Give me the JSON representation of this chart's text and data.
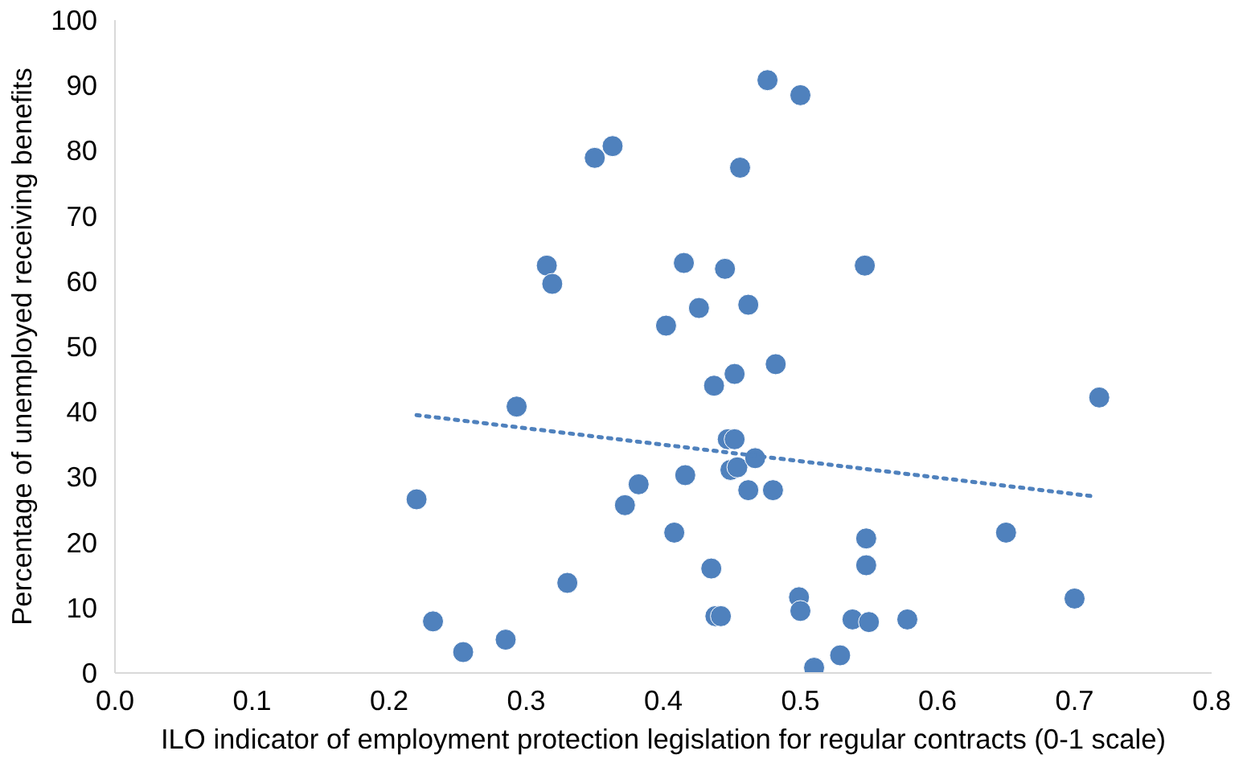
{
  "chart_data": {
    "type": "scatter",
    "xlabel": "ILO indicator of employment protection legislation for regular contracts (0-1 scale)",
    "ylabel": "Percentage of unemployed receiving benefits",
    "xlim": [
      0,
      0.8
    ],
    "xticks": [
      {
        "value": 0,
        "label": "0.0"
      },
      0.1,
      0.2,
      0.3,
      0.4,
      0.5,
      0.6,
      0.7,
      {
        "value": 0.8,
        "label": "0.8"
      }
    ],
    "ylim": [
      0,
      100
    ],
    "yticks": [
      0,
      10,
      20,
      30,
      40,
      50,
      60,
      70,
      80,
      90,
      100
    ],
    "grid": false,
    "marker": "circle",
    "series": [
      {
        "color": "#4f81bd",
        "x": [
          0.22,
          0.232,
          0.254,
          0.285,
          0.293,
          0.315,
          0.319,
          0.33,
          0.35,
          0.363,
          0.372,
          0.382,
          0.402,
          0.408,
          0.415,
          0.416,
          0.426,
          0.435,
          0.437,
          0.438,
          0.442,
          0.445,
          0.447,
          0.449,
          0.452,
          0.452,
          0.454,
          0.456,
          0.462,
          0.462,
          0.467,
          0.476,
          0.48,
          0.482,
          0.499,
          0.5,
          0.5,
          0.51,
          0.529,
          0.538,
          0.547,
          0.548,
          0.548,
          0.55,
          0.578,
          0.65,
          0.7,
          0.718
        ],
        "values": [
          26.6,
          7.9,
          3.2,
          5.1,
          40.8,
          62.4,
          59.6,
          13.8,
          78.9,
          80.7,
          25.7,
          28.9,
          53.2,
          21.5,
          62.8,
          30.3,
          55.9,
          16.0,
          44.0,
          8.7,
          8.7,
          61.9,
          35.8,
          31.1,
          35.8,
          45.8,
          31.5,
          77.4,
          28.0,
          56.4,
          32.9,
          90.8,
          28.0,
          47.3,
          11.6,
          9.5,
          88.5,
          0.8,
          2.7,
          8.2,
          62.4,
          20.6,
          16.5,
          7.8,
          8.2,
          21.5,
          11.4,
          42.2
        ]
      },
      {
        "type": "line",
        "color": "#4f81bd",
        "line_style": "dotted",
        "marker": "none",
        "x": [
          0.22,
          0.712
        ],
        "values": [
          39.5,
          27.1
        ]
      }
    ]
  }
}
